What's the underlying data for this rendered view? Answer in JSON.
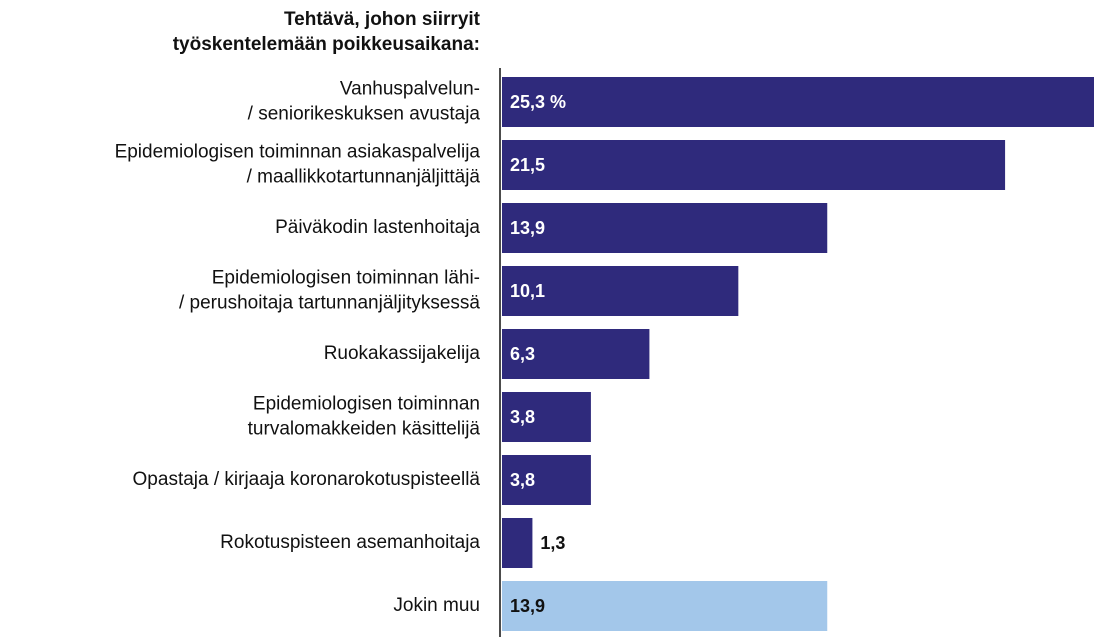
{
  "chart_data": {
    "type": "hbar",
    "title": [
      "Tehtävä, johon siirryit",
      "työskentelemään poikkeusaikana:"
    ],
    "categories": [
      [
        "Vanhuspalvelun-",
        "/ seniorikeskuksen avustaja"
      ],
      [
        "Epidemiologisen toiminnan asiakaspalvelija",
        "/ maallikkotartunnanjäljittäjä"
      ],
      [
        "Päiväkodin lastenhoitaja"
      ],
      [
        "Epidemiologisen toiminnan lähi-",
        "/ perushoitaja tartunnanjäljityksessä"
      ],
      [
        "Ruokakassijakelija"
      ],
      [
        "Epidemiologisen toiminnan",
        "turvalomakkeiden käsittelijä"
      ],
      [
        "Opastaja / kirjaaja koronarokotuspisteellä"
      ],
      [
        "Rokotuspisteen asemanhoitaja"
      ],
      [
        "Jokin muu"
      ]
    ],
    "values": [
      25.3,
      21.5,
      13.9,
      10.1,
      6.3,
      3.8,
      3.8,
      1.3,
      13.9
    ],
    "value_labels": [
      "25,3 %",
      "21,5",
      "13,9",
      "10,1",
      "6,3",
      "3,8",
      "3,8",
      "1,3",
      "13,9"
    ],
    "colors": [
      "#2f2a7c",
      "#2f2a7c",
      "#2f2a7c",
      "#2f2a7c",
      "#2f2a7c",
      "#2f2a7c",
      "#2f2a7c",
      "#2f2a7c",
      "#a3c7ea"
    ],
    "xlim": [
      0,
      25.3
    ]
  }
}
